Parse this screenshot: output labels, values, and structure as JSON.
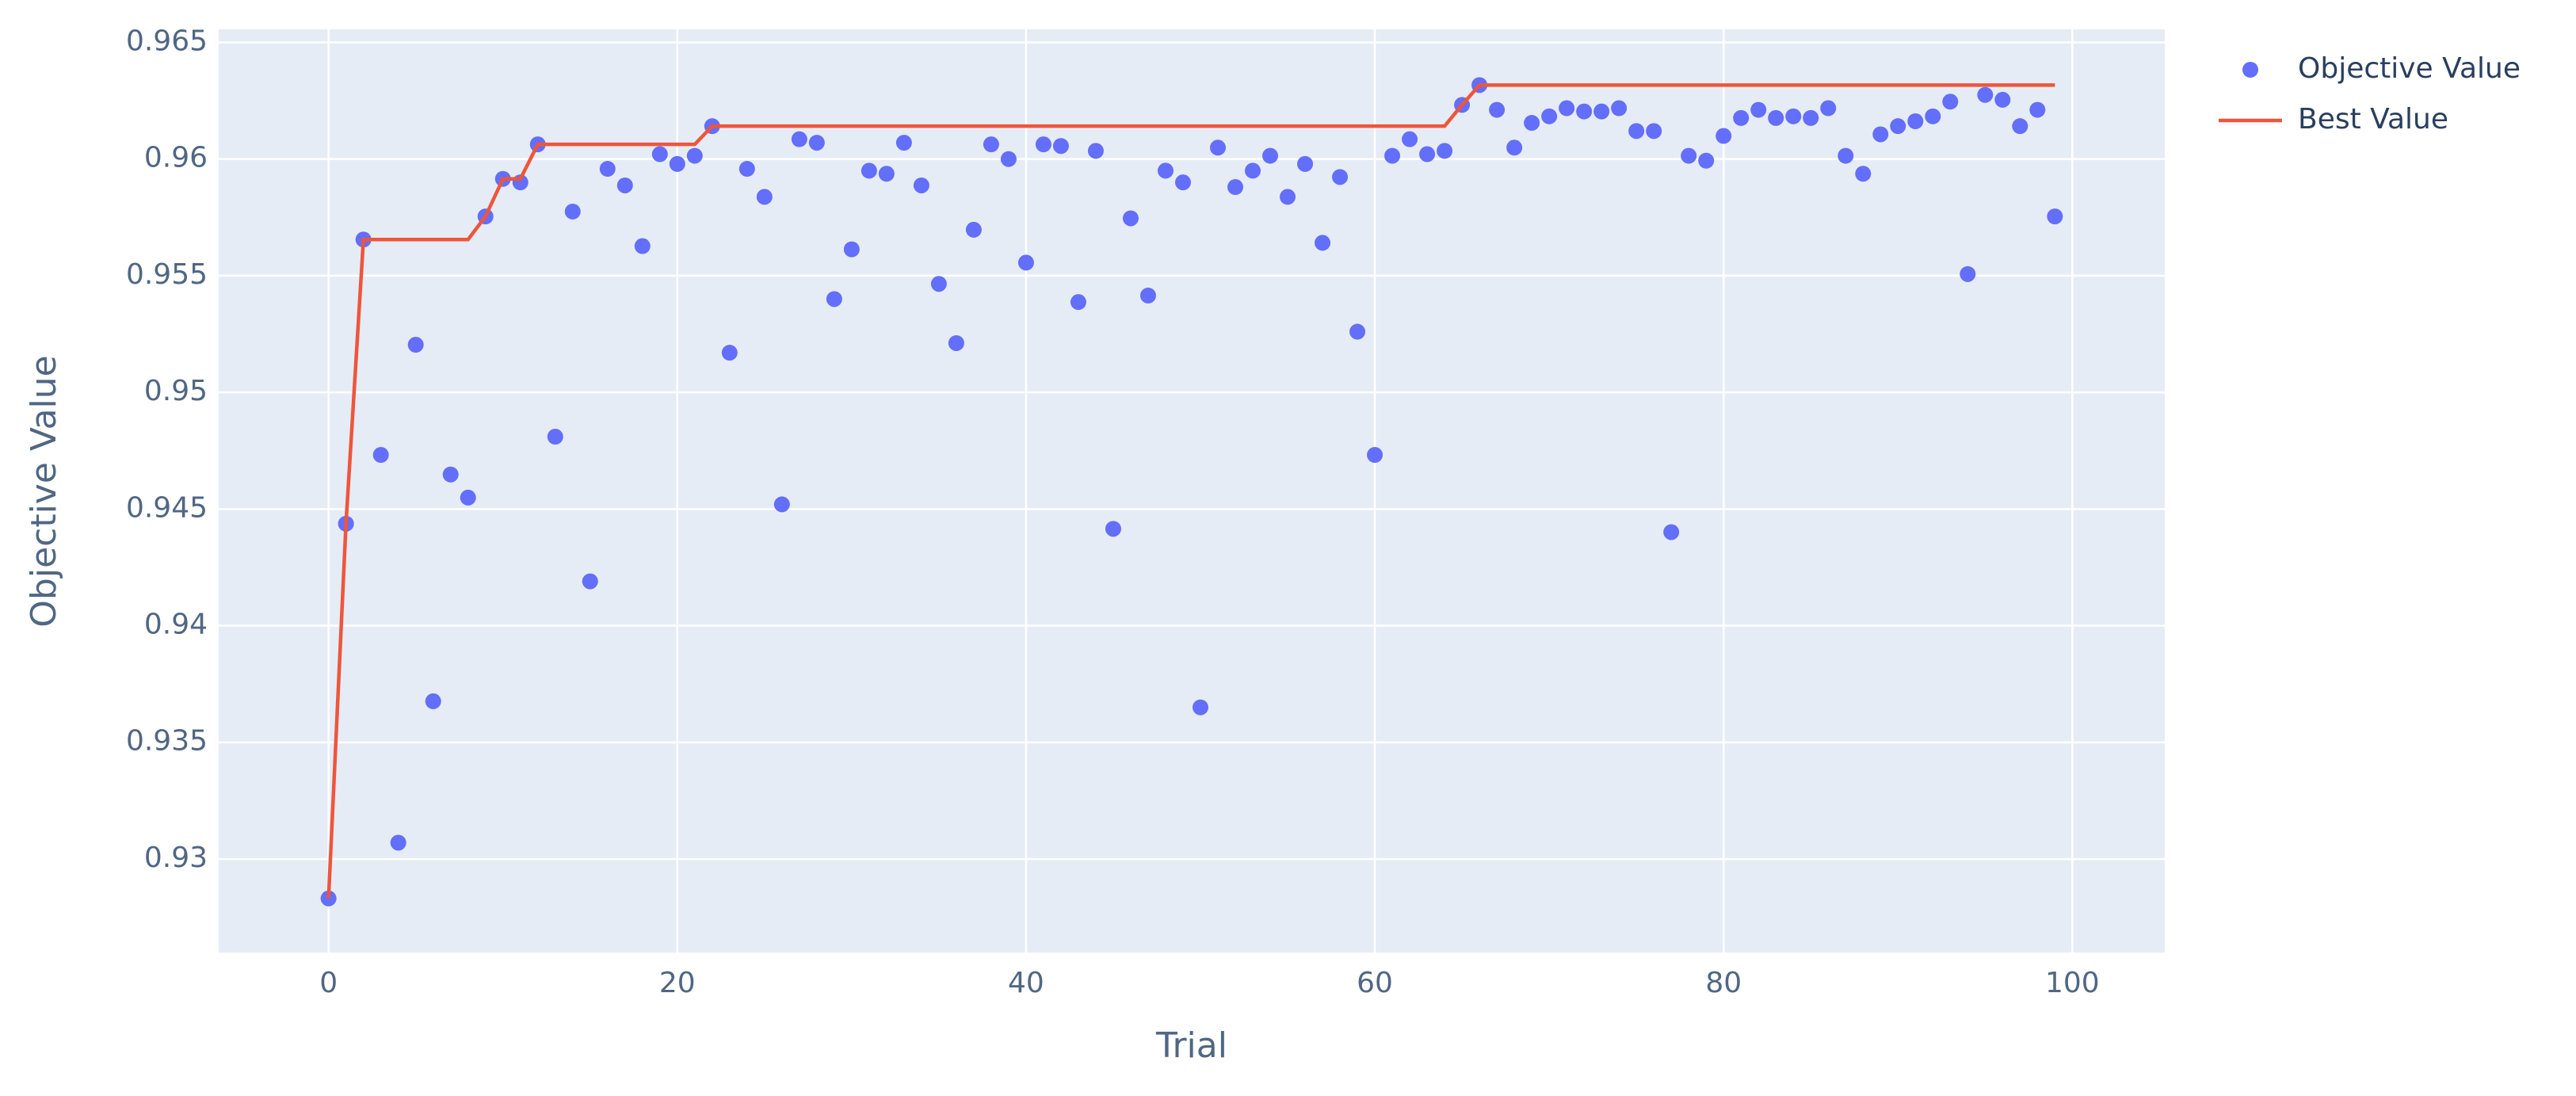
{
  "chart_data": {
    "type": "scatter",
    "xlabel": "Trial",
    "ylabel": "Objective Value",
    "x": [
      0,
      1,
      2,
      3,
      4,
      5,
      6,
      7,
      8,
      9,
      10,
      11,
      12,
      13,
      14,
      15,
      16,
      17,
      18,
      19,
      20,
      21,
      22,
      23,
      24,
      25,
      26,
      27,
      28,
      29,
      30,
      31,
      32,
      33,
      34,
      35,
      36,
      37,
      38,
      39,
      40,
      41,
      42,
      43,
      44,
      45,
      46,
      47,
      48,
      49,
      50,
      51,
      52,
      53,
      54,
      55,
      56,
      57,
      58,
      59,
      60,
      61,
      62,
      63,
      64,
      65,
      66,
      67,
      68,
      69,
      70,
      71,
      72,
      73,
      74,
      75,
      76,
      77,
      78,
      79,
      80,
      81,
      82,
      83,
      84,
      85,
      86,
      87,
      88,
      89,
      90,
      91,
      92,
      93,
      94,
      95,
      96,
      97,
      98,
      99
    ],
    "series": [
      {
        "name": "Objective Value",
        "mode": "markers",
        "color": "#636efa",
        "values": [
          0.92831,
          0.94437,
          0.95655,
          0.94732,
          0.9307,
          0.95204,
          0.93676,
          0.94648,
          0.94549,
          0.95754,
          0.95915,
          0.959,
          0.96063,
          0.9481,
          0.95775,
          0.9419,
          0.95958,
          0.95887,
          0.95627,
          0.96021,
          0.95979,
          0.96014,
          0.96141,
          0.9517,
          0.95958,
          0.95838,
          0.9452,
          0.96085,
          0.9607,
          0.954,
          0.95613,
          0.9595,
          0.95937,
          0.9607,
          0.95887,
          0.95465,
          0.95211,
          0.95697,
          0.96063,
          0.96,
          0.95556,
          0.96063,
          0.96056,
          0.95387,
          0.96035,
          0.94415,
          0.95746,
          0.95415,
          0.9595,
          0.959,
          0.9365,
          0.96049,
          0.9588,
          0.9595,
          0.96014,
          0.95838,
          0.95979,
          0.95641,
          0.95923,
          0.9526,
          0.94732,
          0.96014,
          0.96085,
          0.96021,
          0.96035,
          0.96232,
          0.96317,
          0.96211,
          0.96049,
          0.96155,
          0.96183,
          0.96218,
          0.96204,
          0.96204,
          0.96218,
          0.9612,
          0.9612,
          0.94401,
          0.96014,
          0.95993,
          0.96099,
          0.96176,
          0.96211,
          0.96176,
          0.96183,
          0.96176,
          0.96218,
          0.96014,
          0.95937,
          0.96106,
          0.96141,
          0.96162,
          0.96183,
          0.96246,
          0.95507,
          0.96275,
          0.96254,
          0.96141,
          0.96211,
          0.95754
        ]
      },
      {
        "name": "Best Value",
        "mode": "lines",
        "color": "#ef553b",
        "values": [
          0.92831,
          0.94437,
          0.95655,
          0.95655,
          0.95655,
          0.95655,
          0.95655,
          0.95655,
          0.95655,
          0.95754,
          0.95915,
          0.95915,
          0.96063,
          0.96063,
          0.96063,
          0.96063,
          0.96063,
          0.96063,
          0.96063,
          0.96063,
          0.96063,
          0.96063,
          0.96141,
          0.96141,
          0.96141,
          0.96141,
          0.96141,
          0.96141,
          0.96141,
          0.96141,
          0.96141,
          0.96141,
          0.96141,
          0.96141,
          0.96141,
          0.96141,
          0.96141,
          0.96141,
          0.96141,
          0.96141,
          0.96141,
          0.96141,
          0.96141,
          0.96141,
          0.96141,
          0.96141,
          0.96141,
          0.96141,
          0.96141,
          0.96141,
          0.96141,
          0.96141,
          0.96141,
          0.96141,
          0.96141,
          0.96141,
          0.96141,
          0.96141,
          0.96141,
          0.96141,
          0.96141,
          0.96141,
          0.96141,
          0.96141,
          0.96141,
          0.96232,
          0.96317,
          0.96317,
          0.96317,
          0.96317,
          0.96317,
          0.96317,
          0.96317,
          0.96317,
          0.96317,
          0.96317,
          0.96317,
          0.96317,
          0.96317,
          0.96317,
          0.96317,
          0.96317,
          0.96317,
          0.96317,
          0.96317,
          0.96317,
          0.96317,
          0.96317,
          0.96317,
          0.96317,
          0.96317,
          0.96317,
          0.96317,
          0.96317,
          0.96317,
          0.96317,
          0.96317,
          0.96317,
          0.96317,
          0.96317
        ]
      }
    ],
    "xlim": [
      -6.3,
      105.3
    ],
    "ylim": [
      0.92599,
      0.96556
    ],
    "xticks": [
      0,
      20,
      40,
      60,
      80,
      100
    ],
    "yticks": [
      0.93,
      0.935,
      0.94,
      0.945,
      0.95,
      0.955,
      0.96,
      0.965
    ],
    "grid": true,
    "legend": "outside-right",
    "plot_bgcolor": "#e5ecf6"
  }
}
